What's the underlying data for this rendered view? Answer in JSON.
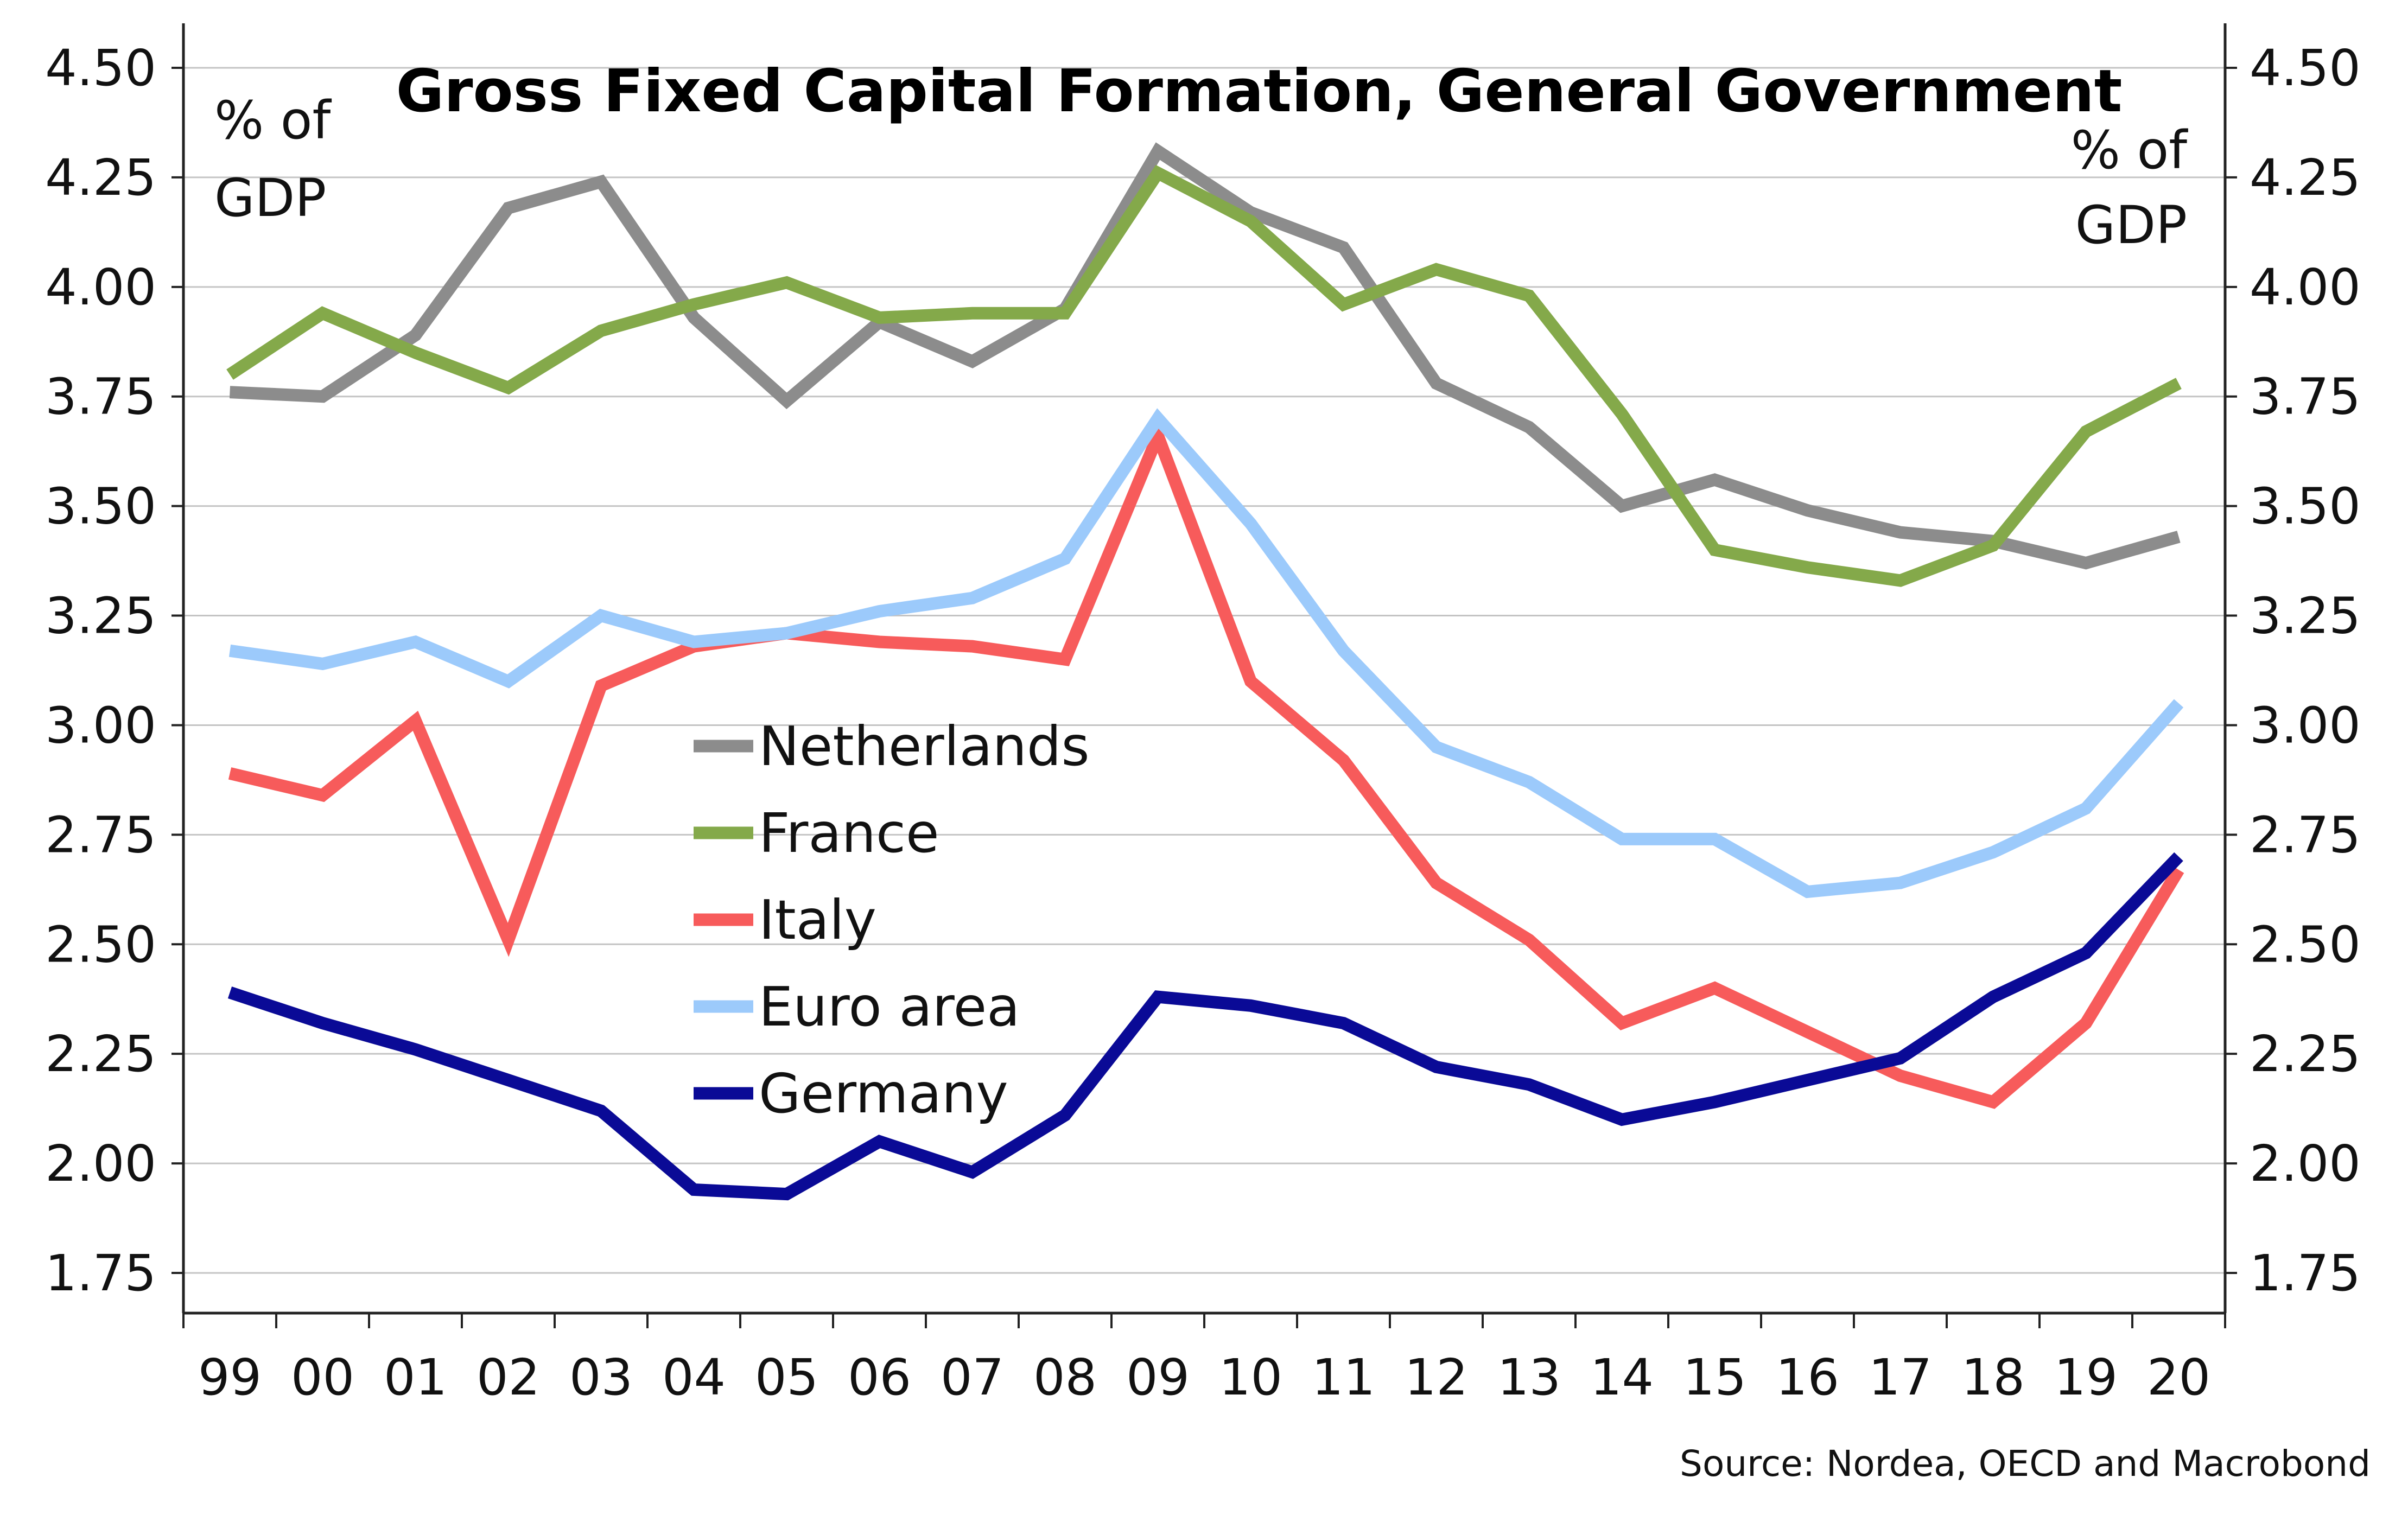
{
  "chart_data": {
    "type": "line",
    "title": "Gross Fixed Capital Formation, General Government",
    "left_unit": [
      "% of",
      "GDP"
    ],
    "right_unit": [
      "% of",
      "GDP"
    ],
    "source": "Source: Nordea, OECD and Macrobond",
    "categories": [
      "99",
      "00",
      "01",
      "02",
      "03",
      "04",
      "05",
      "06",
      "07",
      "08",
      "09",
      "10",
      "11",
      "12",
      "13",
      "14",
      "15",
      "16",
      "17",
      "18",
      "19",
      "20"
    ],
    "ylim": [
      1.75,
      4.5
    ],
    "yticks": [
      "4.50",
      "4.25",
      "4.00",
      "3.75",
      "3.50",
      "3.25",
      "3.00",
      "2.75",
      "2.50",
      "2.25",
      "2.00",
      "1.75"
    ],
    "grid": true,
    "legend_position": "center-left",
    "series": [
      {
        "name": "Netherlands",
        "color": "#8c8c8c",
        "values": [
          3.76,
          3.75,
          3.89,
          4.18,
          4.24,
          3.93,
          3.74,
          3.92,
          3.83,
          3.95,
          4.31,
          4.17,
          4.09,
          3.78,
          3.68,
          3.5,
          3.56,
          3.49,
          3.44,
          3.42,
          3.37,
          3.43
        ]
      },
      {
        "name": "France",
        "color": "#84a94a",
        "values": [
          3.8,
          3.94,
          3.85,
          3.77,
          3.9,
          3.96,
          4.01,
          3.93,
          3.94,
          3.94,
          4.26,
          4.15,
          3.96,
          4.04,
          3.98,
          3.71,
          3.4,
          3.36,
          3.33,
          3.41,
          3.67,
          3.78
        ]
      },
      {
        "name": "Italy",
        "color": "#f75b5b",
        "values": [
          2.89,
          2.84,
          3.01,
          2.51,
          3.09,
          3.18,
          3.21,
          3.19,
          3.18,
          3.15,
          3.66,
          3.1,
          2.92,
          2.64,
          2.51,
          2.32,
          2.4,
          2.3,
          2.2,
          2.14,
          2.32,
          2.67
        ]
      },
      {
        "name": "Euro area",
        "color": "#9ccafb",
        "values": [
          3.17,
          3.14,
          3.19,
          3.1,
          3.25,
          3.19,
          3.21,
          3.26,
          3.29,
          3.38,
          3.7,
          3.46,
          3.17,
          2.95,
          2.87,
          2.74,
          2.74,
          2.62,
          2.64,
          2.71,
          2.81,
          3.05
        ]
      },
      {
        "name": "Germany",
        "color": "#0a0a96",
        "values": [
          2.39,
          2.32,
          2.26,
          2.19,
          2.12,
          1.94,
          1.93,
          2.05,
          1.98,
          2.11,
          2.38,
          2.36,
          2.32,
          2.22,
          2.18,
          2.1,
          2.14,
          2.19,
          2.24,
          2.38,
          2.48,
          2.7
        ]
      }
    ]
  }
}
